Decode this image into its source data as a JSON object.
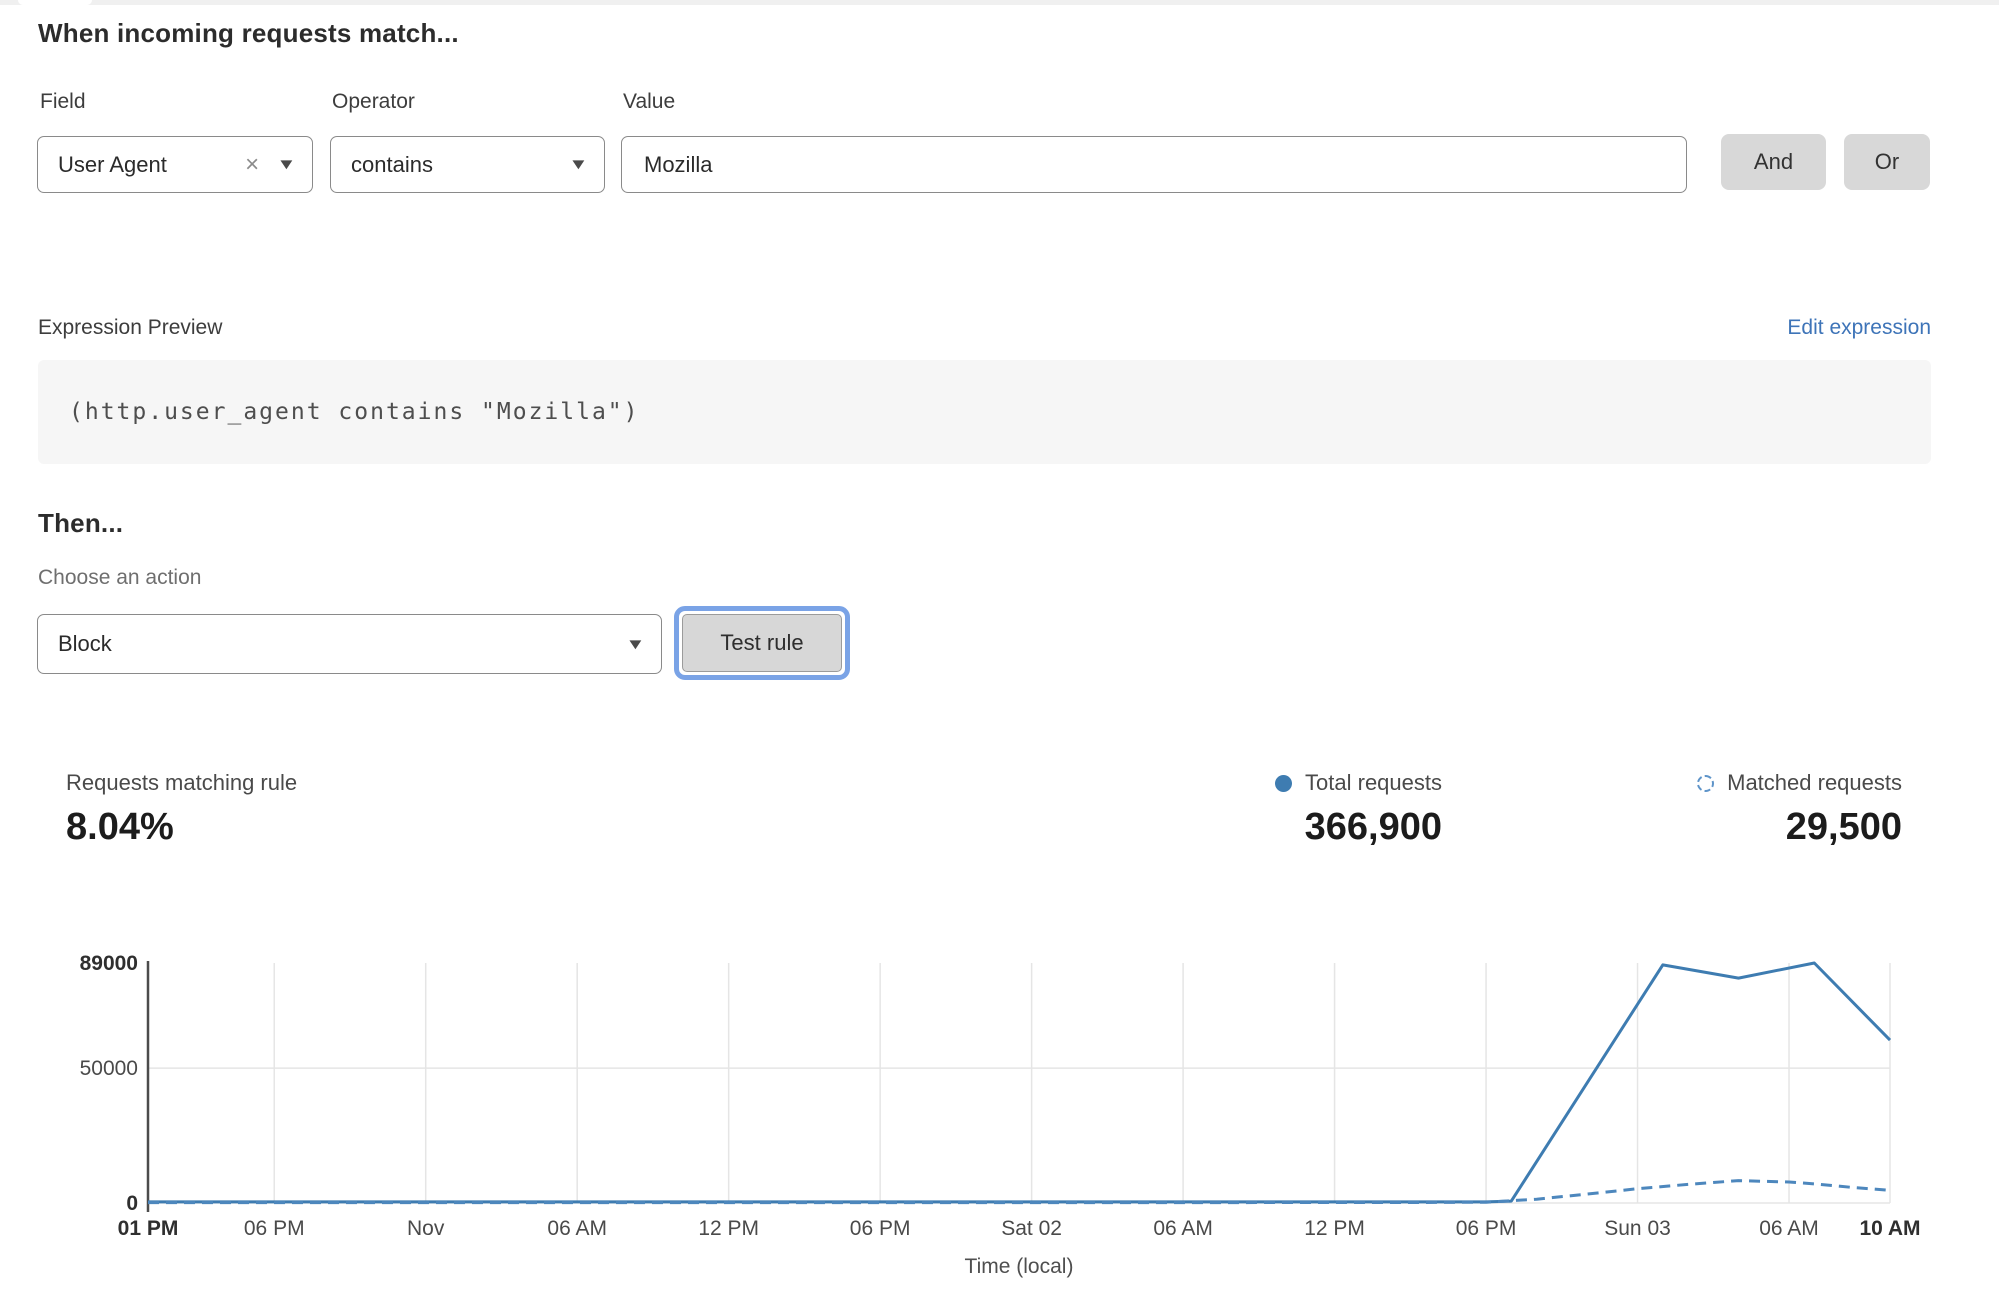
{
  "match_builder": {
    "heading": "When incoming requests match...",
    "field": {
      "label": "Field",
      "value": "User Agent"
    },
    "operator": {
      "label": "Operator",
      "value": "contains"
    },
    "value": {
      "label": "Value",
      "value": "Mozilla"
    },
    "and_label": "And",
    "or_label": "Or"
  },
  "expression_preview": {
    "label": "Expression Preview",
    "edit_link": "Edit expression",
    "code": "(http.user_agent contains \"Mozilla\")"
  },
  "then_section": {
    "heading": "Then...",
    "action_label": "Choose an action",
    "action_value": "Block",
    "test_button": "Test rule"
  },
  "stats": {
    "matching": {
      "label": "Requests matching rule",
      "value": "8.04%"
    },
    "total": {
      "label": "Total requests",
      "value": "366,900"
    },
    "matched": {
      "label": "Matched requests",
      "value": "29,500"
    }
  },
  "icons": {
    "clear": "×",
    "chevron_down": "▼"
  },
  "colors": {
    "link_blue": "#3e74b8",
    "line_solid": "#3e7cb1",
    "line_dashed": "#4d87bd",
    "focus_ring": "#7aa3e6",
    "button_gray": "#d8d8d8",
    "grid": "#e5e5e5",
    "axis": "#4c4c4c"
  },
  "chart_data": {
    "type": "line",
    "title": "",
    "xlabel": "Time (local)",
    "ylabel": "",
    "ylim": [
      0,
      89000
    ],
    "grid": true,
    "legend_position": "top-right-above-chart",
    "y_ticks": [
      {
        "value": 0,
        "label": "0",
        "bold": true
      },
      {
        "value": 50000,
        "label": "50000",
        "bold": false
      },
      {
        "value": 89000,
        "label": "89000",
        "bold": true
      }
    ],
    "x_span_hours": 69,
    "x_ticks": [
      {
        "hour": 0,
        "label": "01 PM",
        "bold": true
      },
      {
        "hour": 5,
        "label": "06 PM",
        "bold": false
      },
      {
        "hour": 11,
        "label": "Nov",
        "bold": false
      },
      {
        "hour": 17,
        "label": "06 AM",
        "bold": false
      },
      {
        "hour": 23,
        "label": "12 PM",
        "bold": false
      },
      {
        "hour": 29,
        "label": "06 PM",
        "bold": false
      },
      {
        "hour": 35,
        "label": "Sat 02",
        "bold": false
      },
      {
        "hour": 41,
        "label": "06 AM",
        "bold": false
      },
      {
        "hour": 47,
        "label": "12 PM",
        "bold": false
      },
      {
        "hour": 53,
        "label": "06 PM",
        "bold": false
      },
      {
        "hour": 59,
        "label": "Sun 03",
        "bold": false
      },
      {
        "hour": 65,
        "label": "06 AM",
        "bold": false
      },
      {
        "hour": 69,
        "label": "10 AM",
        "bold": true
      }
    ],
    "series": [
      {
        "name": "Total requests",
        "style": "solid",
        "color": "#3e7cb1",
        "points": [
          [
            0,
            400
          ],
          [
            10,
            400
          ],
          [
            20,
            400
          ],
          [
            30,
            400
          ],
          [
            40,
            400
          ],
          [
            50,
            400
          ],
          [
            53,
            400
          ],
          [
            54,
            700
          ],
          [
            60,
            88300
          ],
          [
            63,
            83400
          ],
          [
            66,
            89000
          ],
          [
            69,
            60400
          ]
        ]
      },
      {
        "name": "Matched requests",
        "style": "dashed",
        "color": "#4d87bd",
        "points": [
          [
            0,
            150
          ],
          [
            10,
            150
          ],
          [
            20,
            150
          ],
          [
            30,
            150
          ],
          [
            40,
            150
          ],
          [
            50,
            200
          ],
          [
            53,
            300
          ],
          [
            55,
            1400
          ],
          [
            57,
            3300
          ],
          [
            59,
            5300
          ],
          [
            61,
            6900
          ],
          [
            63,
            8300
          ],
          [
            65,
            7800
          ],
          [
            66,
            7100
          ],
          [
            67.5,
            5800
          ],
          [
            69,
            4700
          ]
        ]
      }
    ]
  }
}
